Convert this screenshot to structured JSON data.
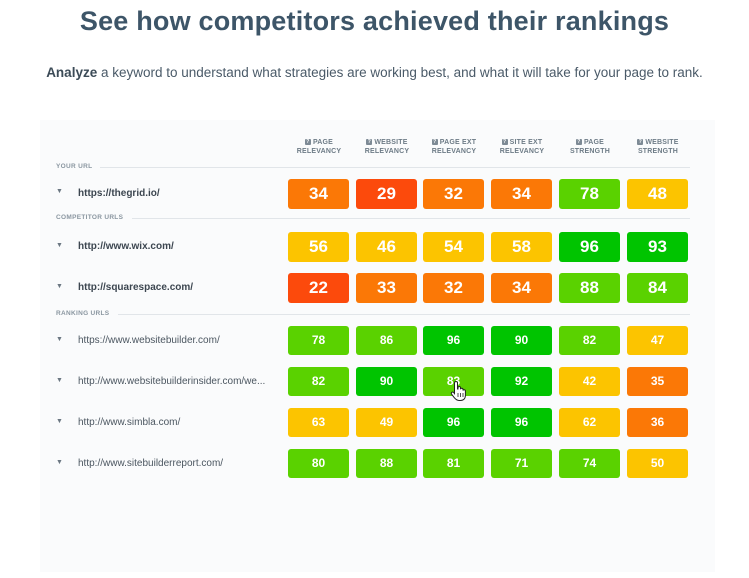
{
  "header": {
    "title": "See how competitors achieved their rankings",
    "subtitle_bold": "Analyze",
    "subtitle_rest": " a keyword to understand what strategies are working best, and what it will take for your page to rank."
  },
  "columns": [
    {
      "line1": "PAGE",
      "line2": "RELEVANCY"
    },
    {
      "line1": "WEBSITE",
      "line2": "RELEVANCY"
    },
    {
      "line1": "PAGE EXT",
      "line2": "RELEVANCY"
    },
    {
      "line1": "SITE EXT",
      "line2": "RELEVANCY"
    },
    {
      "line1": "PAGE",
      "line2": "STRENGTH"
    },
    {
      "line1": "WEBSITE",
      "line2": "STRENGTH"
    }
  ],
  "sections": {
    "your_url": "YOUR URL",
    "competitor_urls": "COMPETITOR URLS",
    "ranking_urls": "RANKING URLS"
  },
  "rows": [
    {
      "url": "https://thegrid.io/",
      "scores": [
        "34",
        "29",
        "32",
        "34",
        "78",
        "48"
      ]
    },
    {
      "url": "http://www.wix.com/",
      "scores": [
        "56",
        "46",
        "54",
        "58",
        "96",
        "93"
      ]
    },
    {
      "url": "http://squarespace.com/",
      "scores": [
        "22",
        "33",
        "32",
        "34",
        "88",
        "84"
      ]
    },
    {
      "url": "https://www.websitebuilder.com/",
      "scores": [
        "78",
        "86",
        "96",
        "90",
        "82",
        "47"
      ]
    },
    {
      "url": "http://www.websitebuilderinsider.com/we...",
      "scores": [
        "82",
        "90",
        "83",
        "92",
        "42",
        "35"
      ]
    },
    {
      "url": "http://www.simbla.com/",
      "scores": [
        "63",
        "49",
        "96",
        "96",
        "62",
        "36"
      ]
    },
    {
      "url": "http://www.sitebuilderreport.com/",
      "scores": [
        "80",
        "88",
        "81",
        "71",
        "74",
        "50"
      ]
    }
  ],
  "colors": {
    "title": "#3d5568",
    "deep_orange": "#fc4a0c",
    "orange": "#fb7806",
    "yellow": "#fcc400",
    "light_green": "#5ad200",
    "green": "#00c400"
  },
  "icons": {
    "row_expand": "triangle-down-icon",
    "column_help": "question-mark-icon",
    "pointer": "hand-pointer-icon"
  }
}
